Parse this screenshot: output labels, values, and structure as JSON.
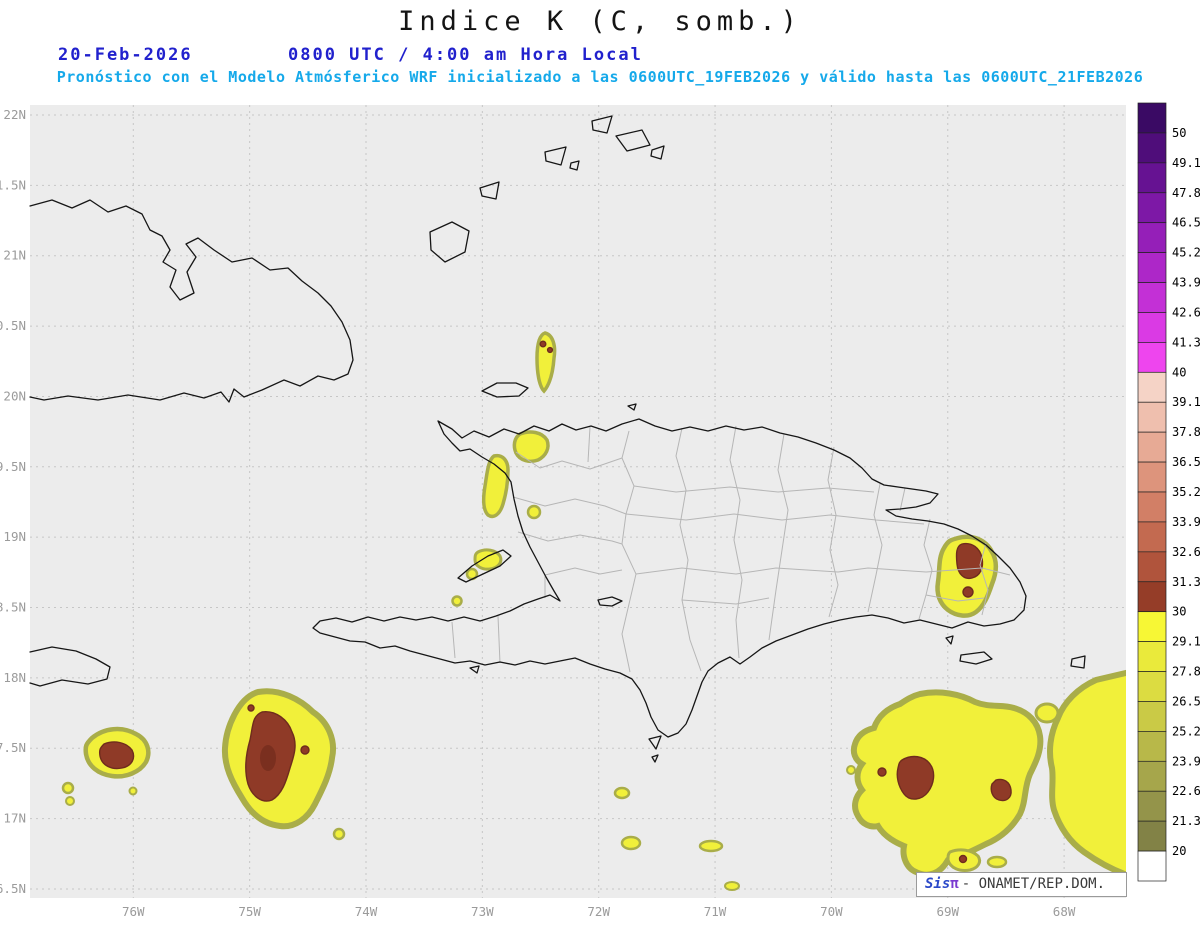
{
  "title": "Indice K (C, somb.)",
  "header": {
    "date": "20-Feb-2026",
    "time": "0800 UTC / 4:00 am Hora Local",
    "forecast": "Pronóstico con el Modelo Atmósferico WRF inicializado a las 0600UTC_19FEB2026 y válido hasta las 0600UTC_21FEB2026"
  },
  "watermark": {
    "prefix": "Sis",
    "pi": "π",
    "suffix": "- ONAMET/REP.DOM."
  },
  "chart_data": {
    "type": "heatmap",
    "title": "Indice K (C, somb.)",
    "model": "WRF",
    "init": "0600UTC_19FEB2026",
    "valid_until": "0600UTC_21FEB2026",
    "valid_time": "20-Feb-2026 0800 UTC / 4:00 am Hora Local",
    "grid": true,
    "projection": "lat/lon over Hispaniola, eastern Cuba, Jamaica tip, Turks and Caicos",
    "x_axis": {
      "tick_labels": [
        "76W",
        "75W",
        "74W",
        "73W",
        "72W",
        "71W",
        "70W",
        "69W",
        "68W"
      ],
      "range_deg_west": [
        76.9,
        67.5
      ]
    },
    "y_axis": {
      "tick_labels": [
        "22N",
        "1.5N",
        "21N",
        "0.5N",
        "20N",
        "9.5N",
        "19N",
        "8.5N",
        "18N",
        "7.5N",
        "17N",
        "6.5N"
      ],
      "range_deg_north": [
        16.5,
        22.0
      ]
    },
    "colorbar": {
      "units": "C",
      "position": "right",
      "tick_labels": [
        "50",
        "49.1",
        "47.8",
        "46.5",
        "45.2",
        "43.9",
        "42.6",
        "41.3",
        "40",
        "39.1",
        "37.8",
        "36.5",
        "35.2",
        "33.9",
        "32.6",
        "31.3",
        "30",
        "29.1",
        "27.8",
        "26.5",
        "25.2",
        "23.9",
        "22.6",
        "21.3",
        "20"
      ],
      "colors_top_to_bottom": [
        "#3a0a64",
        "#4f0d7a",
        "#661292",
        "#7d18a6",
        "#951fb8",
        "#ad27c8",
        "#c330d6",
        "#da3ae4",
        "#ee45ee",
        "#f5d3c6",
        "#efbfae",
        "#e7aa95",
        "#dd947c",
        "#d27f66",
        "#c36a50",
        "#b0543c",
        "#953d28",
        "#f7f735",
        "#eaea3b",
        "#dcdc41",
        "#caca46",
        "#b8b849",
        "#a6a64b",
        "#94944a",
        "#828246",
        "#ffffff"
      ]
    },
    "map_colors": {
      "background": "#ececec",
      "shade_rim_olive": "#a9ad49",
      "shade_yellow": "#f1f03a",
      "core_over_30_maroon": "#8f3a27"
    },
    "regions": [
      {
        "location": "Atlantic cell north of Tortuga island (~72.9W, 20.3N)",
        "k_index": "25-31",
        "note": "narrow cell, two small >30 cores"
      },
      {
        "location": "Northwest Haiti coast (Port-de-Paix / Baie de Henne)",
        "k_index": "25-30"
      },
      {
        "location": "Gonave Gulf / Ile de la Gonave",
        "k_index": "25-29",
        "note": "small patches"
      },
      {
        "location": "Eastern Dominican Republic (La Altagracia, ~68.8W 19N)",
        "k_index": "25-32",
        "note": "core >30"
      },
      {
        "location": "Caribbean southeast of Jamaica (~76.3W 17.5N)",
        "k_index": "25-31",
        "note": "small cell with >30 core"
      },
      {
        "location": "Caribbean south of Haiti Tiburon peninsula (~75W 17.2-17.7N)",
        "k_index": "25-33",
        "note": "large cell, broad >30 maroon core"
      },
      {
        "location": "Caribbean south-southeast of DR (~69-69.8W 17-17.6N)",
        "k_index": "25-32",
        "note": "large area with several >30 cores"
      },
      {
        "location": "Far southeast corner east of 68.4W",
        "k_index": "25-30",
        "note": "large yellow area at map edge"
      },
      {
        "location": "Scattered small cells along 17N-17.4N (72.4W, 71W)",
        "k_index": "~25-27"
      }
    ]
  }
}
